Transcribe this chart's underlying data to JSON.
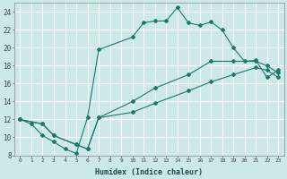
{
  "xlabel": "Humidex (Indice chaleur)",
  "bg_color": "#cde8e8",
  "grid_color": "#ffffff",
  "line_color": "#1a7a6a",
  "xlim": [
    -0.5,
    23.5
  ],
  "ylim": [
    8,
    25
  ],
  "xticks": [
    0,
    1,
    2,
    3,
    4,
    5,
    6,
    7,
    8,
    9,
    10,
    11,
    12,
    13,
    14,
    15,
    16,
    17,
    18,
    19,
    20,
    21,
    22,
    23
  ],
  "yticks": [
    8,
    10,
    12,
    14,
    16,
    18,
    20,
    22,
    24
  ],
  "line1_x": [
    0,
    1,
    2,
    3,
    4,
    5,
    6,
    7,
    10,
    11,
    12,
    13,
    14,
    15,
    16,
    17,
    18,
    19,
    20,
    21,
    22,
    23
  ],
  "line1_y": [
    12,
    11.5,
    10.2,
    9.5,
    8.7,
    8.2,
    12.2,
    19.8,
    21.2,
    22.8,
    23.0,
    23.0,
    24.5,
    22.8,
    22.5,
    22.9,
    22.0,
    20.0,
    18.5,
    18.6,
    16.7,
    17.5
  ],
  "line2_x": [
    0,
    2,
    3,
    5,
    6,
    7,
    10,
    12,
    15,
    17,
    19,
    21,
    22,
    23
  ],
  "line2_y": [
    12,
    11.5,
    10.2,
    9.2,
    8.7,
    12.2,
    14.0,
    15.5,
    17.0,
    18.5,
    18.5,
    18.5,
    18.0,
    17.2
  ],
  "line3_x": [
    0,
    2,
    3,
    5,
    6,
    7,
    10,
    12,
    15,
    17,
    19,
    21,
    22,
    23
  ],
  "line3_y": [
    12,
    11.5,
    10.2,
    9.2,
    8.7,
    12.2,
    12.8,
    13.8,
    15.2,
    16.2,
    17.0,
    17.8,
    17.5,
    16.7
  ]
}
